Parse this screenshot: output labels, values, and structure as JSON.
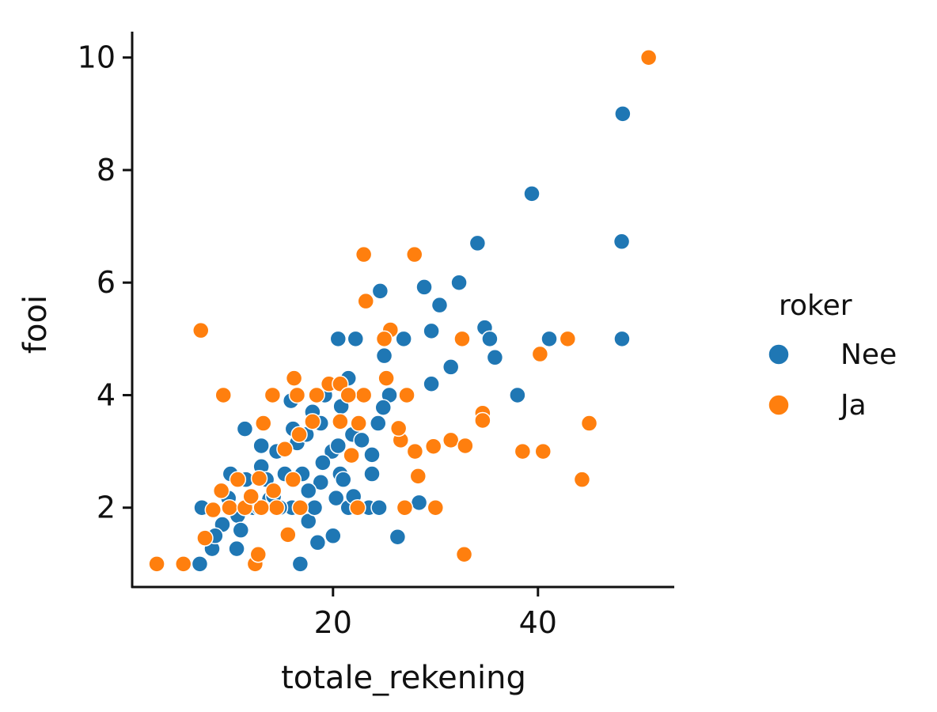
{
  "chart_data": {
    "type": "scatter",
    "title": "",
    "xlabel": "totale_rekening",
    "ylabel": "fooi",
    "xlim": [
      0.4,
      53.3
    ],
    "ylim": [
      0.59,
      10.46
    ],
    "xticks": [
      20,
      40
    ],
    "yticks": [
      2,
      4,
      6,
      8,
      10
    ],
    "grid": false,
    "legend": {
      "title": "roker",
      "placement": "right",
      "entries": [
        "Nee",
        "Ja"
      ]
    },
    "series": [
      {
        "name": "Nee",
        "color": "#1f77b4",
        "points": [
          [
            48.27,
            9.0
          ],
          [
            39.4,
            7.58
          ],
          [
            48.17,
            6.73
          ],
          [
            34.1,
            6.7
          ],
          [
            32.3,
            6.0
          ],
          [
            28.9,
            5.92
          ],
          [
            24.6,
            5.85
          ],
          [
            30.4,
            5.6
          ],
          [
            29.6,
            5.14
          ],
          [
            34.8,
            5.2
          ],
          [
            35.3,
            5.0
          ],
          [
            35.8,
            4.67
          ],
          [
            41.1,
            5.0
          ],
          [
            48.2,
            5.0
          ],
          [
            26.9,
            5.0
          ],
          [
            20.5,
            5.0
          ],
          [
            22.2,
            5.0
          ],
          [
            31.5,
            4.5
          ],
          [
            29.6,
            4.2
          ],
          [
            38.0,
            4.0
          ],
          [
            25.0,
            4.7
          ],
          [
            25.5,
            4.0
          ],
          [
            21.5,
            4.3
          ],
          [
            26.3,
            1.48
          ],
          [
            16.8,
            1.0
          ],
          [
            7.0,
            1.0
          ],
          [
            7.2,
            2.0
          ],
          [
            11.4,
            3.4
          ],
          [
            10.0,
            2.6
          ],
          [
            16.5,
            3.15
          ],
          [
            17.4,
            3.3
          ],
          [
            19.9,
            3.0
          ],
          [
            20.7,
            2.6
          ],
          [
            23.8,
            2.6
          ],
          [
            23.8,
            2.94
          ],
          [
            24.4,
            3.5
          ],
          [
            24.9,
            3.78
          ],
          [
            28.4,
            2.09
          ],
          [
            18.5,
            1.38
          ],
          [
            17.6,
            1.76
          ],
          [
            10.6,
            1.27
          ],
          [
            8.2,
            1.27
          ],
          [
            9.8,
            2.17
          ],
          [
            13.0,
            2.73
          ],
          [
            14.5,
            3.0
          ],
          [
            15.3,
            2.6
          ],
          [
            18.8,
            2.45
          ],
          [
            20.3,
            2.17
          ],
          [
            21.5,
            2.0
          ],
          [
            17.6,
            2.3
          ],
          [
            12.2,
            2.0
          ],
          [
            13.8,
            2.15
          ],
          [
            10.7,
            1.86
          ],
          [
            9.2,
            1.7
          ],
          [
            13.0,
            3.1
          ],
          [
            16.1,
            3.4
          ],
          [
            18.0,
            3.7
          ],
          [
            19.2,
            4.0
          ],
          [
            20.8,
            3.8
          ],
          [
            21.9,
            3.3
          ],
          [
            22.8,
            3.2
          ],
          [
            19.0,
            2.8
          ],
          [
            16.0,
            2.0
          ],
          [
            14.8,
            2.0
          ],
          [
            18.2,
            2.0
          ],
          [
            20.0,
            1.5
          ],
          [
            23.5,
            2.0
          ],
          [
            24.5,
            2.0
          ],
          [
            11.5,
            2.5
          ],
          [
            12.8,
            2.0
          ],
          [
            15.9,
            3.9
          ],
          [
            17.0,
            2.6
          ],
          [
            21.0,
            2.5
          ],
          [
            22.0,
            2.2
          ],
          [
            8.5,
            1.5
          ],
          [
            11.0,
            1.6
          ],
          [
            14.2,
            2.2
          ],
          [
            18.8,
            3.5
          ],
          [
            20.5,
            3.1
          ],
          [
            13.5,
            2.5
          ]
        ]
      },
      {
        "name": "Ja",
        "color": "#ff7f0e",
        "points": [
          [
            50.8,
            10.0
          ],
          [
            23.0,
            6.5
          ],
          [
            27.95,
            6.5
          ],
          [
            23.2,
            5.67
          ],
          [
            7.1,
            5.15
          ],
          [
            25.6,
            5.16
          ],
          [
            25.0,
            5.0
          ],
          [
            32.6,
            5.0
          ],
          [
            42.9,
            5.0
          ],
          [
            40.2,
            4.73
          ],
          [
            45.0,
            3.5
          ],
          [
            34.6,
            3.68
          ],
          [
            34.6,
            3.55
          ],
          [
            38.5,
            3.0
          ],
          [
            40.5,
            3.0
          ],
          [
            44.3,
            2.5
          ],
          [
            32.8,
            1.17
          ],
          [
            30.0,
            2.0
          ],
          [
            27.0,
            2.0
          ],
          [
            22.4,
            2.0
          ],
          [
            28.3,
            2.56
          ],
          [
            28.0,
            3.0
          ],
          [
            29.8,
            3.09
          ],
          [
            31.5,
            3.2
          ],
          [
            32.9,
            3.1
          ],
          [
            26.6,
            3.2
          ],
          [
            26.4,
            3.41
          ],
          [
            27.2,
            4.0
          ],
          [
            23.0,
            4.0
          ],
          [
            18.4,
            4.0
          ],
          [
            14.1,
            4.0
          ],
          [
            9.3,
            4.0
          ],
          [
            16.2,
            4.3
          ],
          [
            19.6,
            4.2
          ],
          [
            2.8,
            1.0
          ],
          [
            5.4,
            1.0
          ],
          [
            12.4,
            1.0
          ],
          [
            12.7,
            1.17
          ],
          [
            7.5,
            1.46
          ],
          [
            15.6,
            1.52
          ],
          [
            8.3,
            1.96
          ],
          [
            9.9,
            2.0
          ],
          [
            14.5,
            2.0
          ],
          [
            16.8,
            2.0
          ],
          [
            13.0,
            2.0
          ],
          [
            11.4,
            2.0
          ],
          [
            14.2,
            2.3
          ],
          [
            12.8,
            2.52
          ],
          [
            16.1,
            2.5
          ],
          [
            15.3,
            3.04
          ],
          [
            16.7,
            3.3
          ],
          [
            18.0,
            3.53
          ],
          [
            20.7,
            3.53
          ],
          [
            22.5,
            3.5
          ],
          [
            21.8,
            2.93
          ],
          [
            13.2,
            3.5
          ],
          [
            12.0,
            2.2
          ],
          [
            10.7,
            2.5
          ],
          [
            9.1,
            2.3
          ],
          [
            25.2,
            4.3
          ],
          [
            20.7,
            4.2
          ],
          [
            21.5,
            4.0
          ],
          [
            16.5,
            4.0
          ]
        ]
      }
    ]
  }
}
